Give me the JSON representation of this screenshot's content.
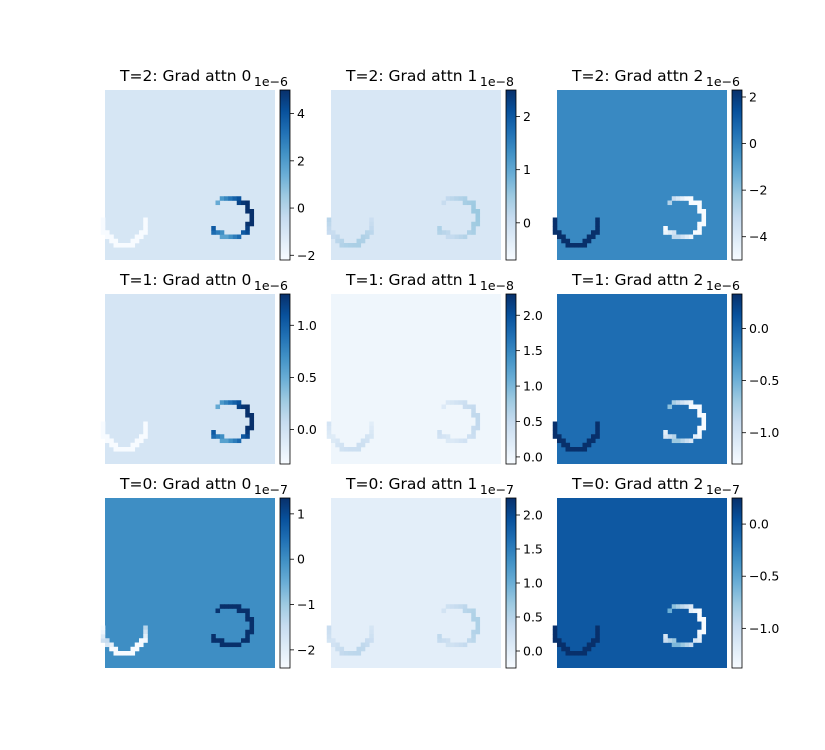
{
  "colormap": "Blues",
  "colors": {
    "cmap_low": "#f7fbff",
    "cmap_high": "#08306b"
  },
  "chart_data": [
    {
      "type": "heatmap",
      "title": "T=2: Grad attn 0",
      "offset_label": "1e−6",
      "range": [
        -2.2,
        5.0
      ],
      "bg": -1.0,
      "ticks": [
        -2,
        0,
        2,
        4
      ],
      "tick_labels": [
        "−2",
        "0",
        "2",
        "4"
      ]
    },
    {
      "type": "heatmap",
      "title": "T=2: Grad attn 1",
      "offset_label": "1e−8",
      "range": [
        -0.7,
        2.5
      ],
      "bg": -0.2,
      "ticks": [
        0,
        1,
        2
      ],
      "tick_labels": [
        "0",
        "1",
        "2"
      ]
    },
    {
      "type": "heatmap",
      "title": "T=2: Grad attn 2",
      "offset_label": "1e−6",
      "range": [
        -5.0,
        2.3
      ],
      "bg": -0.2,
      "ticks": [
        -4,
        -2,
        0,
        2
      ],
      "tick_labels": [
        "−4",
        "−2",
        "0",
        "2"
      ]
    },
    {
      "type": "heatmap",
      "title": "T=1: Grad attn 0",
      "offset_label": "1e−6",
      "range": [
        -0.33,
        1.3
      ],
      "bg": -0.05,
      "ticks": [
        0.0,
        0.5,
        1.0
      ],
      "tick_labels": [
        "0.0",
        "0.5",
        "1.0"
      ]
    },
    {
      "type": "heatmap",
      "title": "T=1: Grad attn 1",
      "offset_label": "1e−8",
      "range": [
        -0.1,
        2.3
      ],
      "bg": 0.0,
      "ticks": [
        0.0,
        0.5,
        1.0,
        1.5,
        2.0
      ],
      "tick_labels": [
        "0.0",
        "0.5",
        "1.0",
        "1.5",
        "2.0"
      ]
    },
    {
      "type": "heatmap",
      "title": "T=1: Grad attn 2",
      "offset_label": "1e−6",
      "range": [
        -1.3,
        0.33
      ],
      "bg": -0.05,
      "ticks": [
        -1.0,
        -0.5,
        0.0
      ],
      "tick_labels": [
        "−1.0",
        "−0.5",
        "0.0"
      ]
    },
    {
      "type": "heatmap",
      "title": "T=0: Grad attn 0",
      "offset_label": "1e−7",
      "range": [
        -2.4,
        1.35
      ],
      "bg": 0.0,
      "ticks": [
        -2,
        -1,
        0,
        1
      ],
      "tick_labels": [
        "−2",
        "−1",
        "0",
        "1"
      ]
    },
    {
      "type": "heatmap",
      "title": "T=0: Grad attn 1",
      "offset_label": "1e−7",
      "range": [
        -0.25,
        2.25
      ],
      "bg": 0.0,
      "ticks": [
        0.0,
        0.5,
        1.0,
        1.5,
        2.0
      ],
      "tick_labels": [
        "0.0",
        "0.5",
        "1.0",
        "1.5",
        "2.0"
      ]
    },
    {
      "type": "heatmap",
      "title": "T=0: Grad attn 2",
      "offset_label": "1e−7",
      "range": [
        -1.38,
        0.25
      ],
      "bg": 0.0,
      "ticks": [
        -1.0,
        -0.5,
        0.0
      ],
      "tick_labels": [
        "−1.0",
        "−0.5",
        "0.0"
      ]
    }
  ]
}
